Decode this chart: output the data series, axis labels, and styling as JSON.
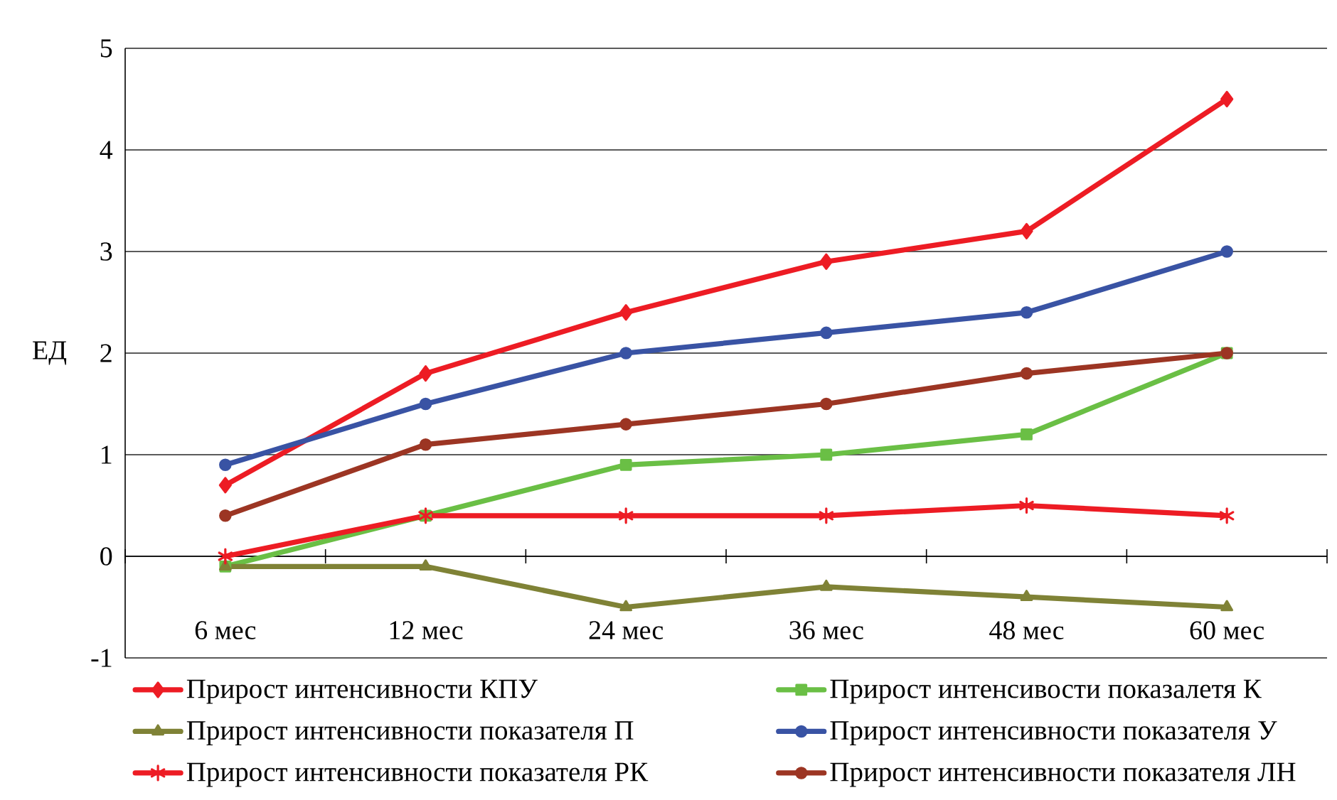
{
  "chart_data": {
    "type": "line",
    "ylabel": "ЕД",
    "categories": [
      "6 мес",
      "12 мес",
      "24 мес",
      "36 мес",
      "48 мес",
      "60 мес"
    ],
    "series": [
      {
        "name": "Прирост интенсивности КПУ",
        "color": "#ed1c24",
        "marker": "diamond",
        "values": [
          0.7,
          1.8,
          2.4,
          2.9,
          3.2,
          4.5
        ]
      },
      {
        "name": "Прирост интенсивости показалетя К",
        "color": "#6abf45",
        "marker": "square",
        "values": [
          -0.1,
          0.4,
          0.9,
          1.0,
          1.2,
          2.0
        ]
      },
      {
        "name": "Прирост интенсивности показателя П",
        "color": "#7f8236",
        "marker": "triangle",
        "values": [
          -0.1,
          -0.1,
          -0.5,
          -0.3,
          -0.4,
          -0.5
        ]
      },
      {
        "name": "Прирост интенсивности показателя У",
        "color": "#3953a4",
        "marker": "circle",
        "values": [
          0.9,
          1.5,
          2.0,
          2.2,
          2.4,
          3.0
        ]
      },
      {
        "name": "Прирост интенсивности показателя РК",
        "color": "#ed1c24",
        "marker": "cross",
        "values": [
          0.0,
          0.4,
          0.4,
          0.4,
          0.5,
          0.4
        ]
      },
      {
        "name": "Прирост интенсивности показателя ЛН",
        "color": "#9c3523",
        "marker": "circle",
        "values": [
          0.4,
          1.1,
          1.3,
          1.5,
          1.8,
          2.0
        ]
      }
    ],
    "ylim": [
      -1,
      5
    ],
    "yticks": [
      -1,
      0,
      1,
      2,
      3,
      4,
      5
    ],
    "grid": "y",
    "legend": "bottom"
  }
}
